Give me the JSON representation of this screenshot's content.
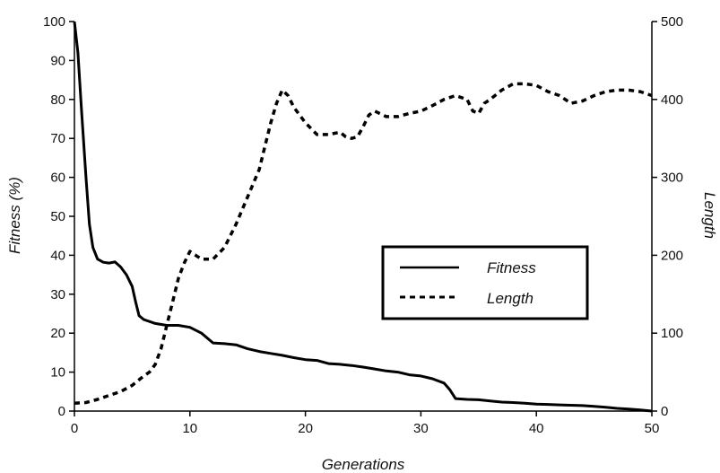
{
  "chart_data": {
    "type": "line",
    "xlabel": "Generations",
    "ylabel_left": "Fitness (%)",
    "ylabel_right": "Length",
    "xlim": [
      0,
      50
    ],
    "ylim_left": [
      0,
      100
    ],
    "ylim_right": [
      0,
      500
    ],
    "x_ticks": [
      "0",
      "10",
      "20",
      "30",
      "40",
      "50"
    ],
    "y_left_ticks": [
      "0",
      "10",
      "20",
      "30",
      "40",
      "50",
      "60",
      "70",
      "80",
      "90",
      "100"
    ],
    "y_right_ticks": [
      "0",
      "100",
      "200",
      "300",
      "400",
      "500"
    ],
    "grid": false,
    "legend_position": "center-right",
    "series": [
      {
        "name": "Fitness",
        "axis": "left",
        "style": "solid",
        "color": "#000000",
        "x": [
          0,
          0.3,
          0.6,
          1.0,
          1.3,
          1.6,
          2.0,
          2.5,
          3.0,
          3.5,
          4.0,
          4.5,
          5.0,
          5.3,
          5.6,
          6.0,
          7.0,
          8.0,
          9.0,
          10.0,
          11.0,
          12.0,
          13.0,
          14.0,
          15.0,
          16.0,
          17.0,
          18.0,
          19.0,
          20.0,
          21.0,
          22.0,
          23.0,
          24.0,
          25.0,
          26.0,
          27.0,
          28.0,
          29.0,
          30.0,
          31.0,
          32.0,
          32.5,
          33.0,
          34.0,
          35.0,
          36.0,
          37.0,
          38.0,
          39.0,
          40.0,
          41.0,
          42.0,
          43.0,
          44.0,
          45.0,
          46.0,
          47.0,
          48.0,
          49.0,
          50.0
        ],
        "values": [
          100,
          92,
          78,
          60,
          48,
          42,
          39,
          38.2,
          38,
          38.3,
          37,
          35,
          32,
          28,
          24.5,
          23.5,
          22.5,
          22,
          22,
          21.5,
          20,
          17.5,
          17.3,
          17,
          16,
          15.3,
          14.8,
          14.3,
          13.7,
          13.2,
          13,
          12.2,
          12,
          11.7,
          11.3,
          10.8,
          10.3,
          10,
          9.3,
          9,
          8.3,
          7.2,
          5.5,
          3.2,
          3,
          2.9,
          2.6,
          2.3,
          2.2,
          2.0,
          1.8,
          1.7,
          1.6,
          1.5,
          1.4,
          1.2,
          1.0,
          0.7,
          0.5,
          0.3,
          0
        ]
      },
      {
        "name": "Length",
        "axis": "right",
        "style": "dashed",
        "color": "#000000",
        "x": [
          0,
          1,
          2,
          3,
          4,
          5,
          6,
          6.5,
          7,
          7.5,
          8,
          8.5,
          9,
          9.5,
          10,
          10.5,
          11,
          12,
          13,
          14,
          15,
          16,
          16.5,
          17,
          17.5,
          18,
          18.5,
          19,
          20,
          21,
          22,
          23,
          23.5,
          24,
          24.5,
          25,
          25.5,
          26,
          27,
          28,
          29,
          30,
          31,
          32,
          33,
          34,
          34.5,
          35,
          35.5,
          36,
          37,
          38,
          39,
          40,
          41,
          42,
          43,
          44,
          45,
          46,
          47,
          48,
          49,
          50
        ],
        "values": [
          10,
          11,
          15,
          20,
          25,
          33,
          45,
          50,
          60,
          80,
          110,
          140,
          170,
          190,
          205,
          200,
          195,
          195,
          210,
          240,
          275,
          310,
          340,
          370,
          395,
          412,
          405,
          390,
          370,
          355,
          355,
          358,
          352,
          350,
          352,
          365,
          380,
          385,
          378,
          378,
          382,
          385,
          392,
          400,
          405,
          400,
          385,
          382,
          395,
          400,
          412,
          420,
          420,
          418,
          410,
          405,
          395,
          398,
          405,
          410,
          412,
          412,
          410,
          405
        ]
      }
    ]
  }
}
